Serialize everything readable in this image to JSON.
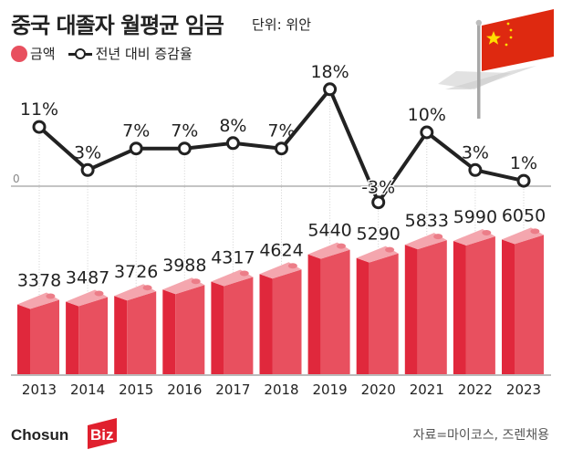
{
  "header": {
    "title": "중국 대졸자 월평균 임금",
    "unit": "단위: 위안"
  },
  "legend": {
    "bar_label": "금액",
    "line_label": "전년 대비 증감율"
  },
  "footer": {
    "source": "자료=마이코스, 즈렌채용",
    "logo_text_main": "Chosun",
    "logo_text_accent": "Biz"
  },
  "colors": {
    "bar_front": "#e8505f",
    "bar_side": "#e0283c",
    "bar_top": "#f4a6ae",
    "line": "#222222",
    "flag": "#de2910",
    "star": "#ffde00",
    "logo_red": "#e0202e"
  },
  "icons": {
    "flag": "china-flag-icon"
  },
  "chart_data": {
    "type": "bar+line",
    "title": "중국 대졸자 월평균 임금",
    "categories": [
      "2013",
      "2014",
      "2015",
      "2016",
      "2017",
      "2018",
      "2019",
      "2020",
      "2021",
      "2022",
      "2023"
    ],
    "series": [
      {
        "name": "금액",
        "type": "bar",
        "values": [
          3378,
          3487,
          3726,
          3988,
          4317,
          4624,
          5440,
          5290,
          5833,
          5990,
          6050
        ],
        "labels": [
          "3378",
          "3487",
          "3726",
          "3988",
          "4317",
          "4624",
          "5440",
          "5290",
          "5833",
          "5990",
          "6050"
        ]
      },
      {
        "name": "전년 대비 증감율",
        "type": "line",
        "values": [
          11,
          3,
          7,
          7,
          8,
          7,
          18,
          -3,
          10,
          3,
          1
        ],
        "labels": [
          "11%",
          "3%",
          "7%",
          "7%",
          "8%",
          "7%",
          "18%",
          "-3%",
          "10%",
          "3%",
          "1%"
        ]
      }
    ],
    "zero_label": "0",
    "ylabel": "",
    "xlabel": "",
    "unit": "위안"
  }
}
